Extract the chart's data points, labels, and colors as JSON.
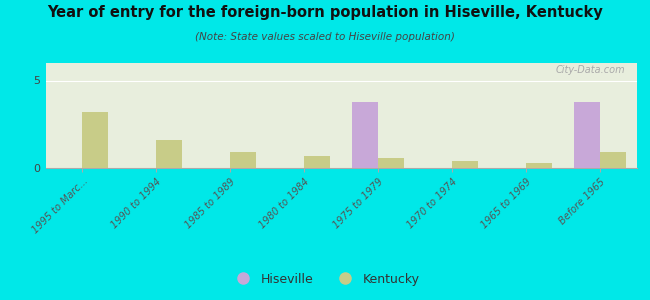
{
  "title": "Year of entry for the foreign-born population in Hiseville, Kentucky",
  "subtitle": "(Note: State values scaled to Hiseville population)",
  "categories": [
    "1995 to Marc...",
    "1990 to 1994",
    "1985 to 1989",
    "1980 to 1984",
    "1975 to 1979",
    "1970 to 1974",
    "1965 to 1969",
    "Before 1965"
  ],
  "hiseville_values": [
    0,
    0,
    0,
    0,
    3.8,
    0,
    0,
    3.8
  ],
  "kentucky_values": [
    3.2,
    1.6,
    0.9,
    0.7,
    0.6,
    0.4,
    0.3,
    0.9
  ],
  "hiseville_color": "#c8a8d8",
  "kentucky_color": "#c8cc88",
  "background_color": "#00e8e8",
  "plot_bg_color": "#e8eedd",
  "ylim": [
    0,
    6
  ],
  "yticks": [
    0,
    5
  ],
  "bar_width": 0.35,
  "watermark": "City-Data.com",
  "legend_hiseville": "Hiseville",
  "legend_kentucky": "Kentucky"
}
